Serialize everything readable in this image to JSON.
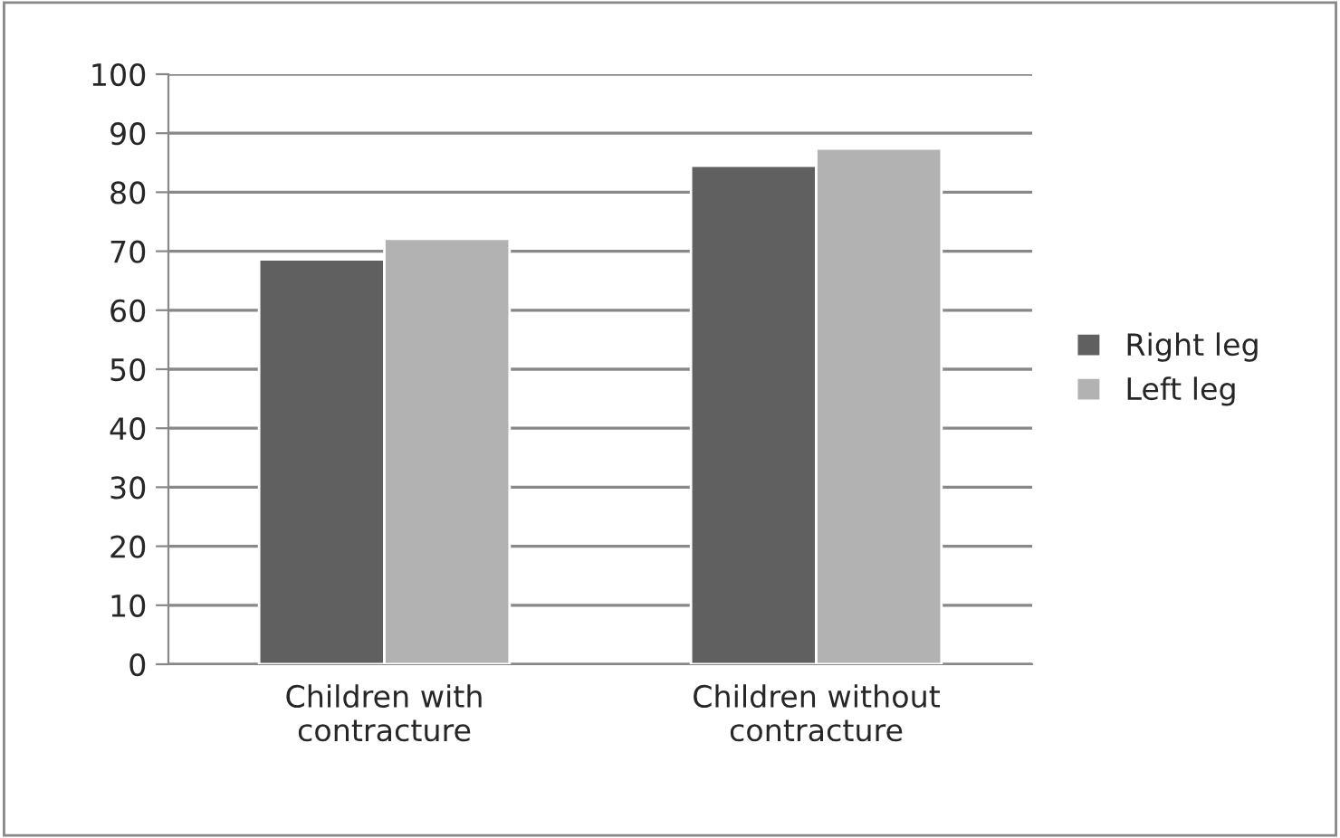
{
  "chart_data": {
    "type": "bar",
    "categories": [
      "Children with\ncontracture",
      "Children without\ncontracture"
    ],
    "series": [
      {
        "name": "Right leg",
        "color": "#606060",
        "values": [
          68.6,
          84.5
        ]
      },
      {
        "name": "Left leg",
        "color": "#b2b2b2",
        "values": [
          72.1,
          87.4
        ]
      }
    ],
    "ylim": [
      0,
      100
    ],
    "yticks": [
      0,
      10,
      20,
      30,
      40,
      50,
      60,
      70,
      80,
      90,
      100
    ],
    "grid": "y",
    "legend": "right"
  }
}
